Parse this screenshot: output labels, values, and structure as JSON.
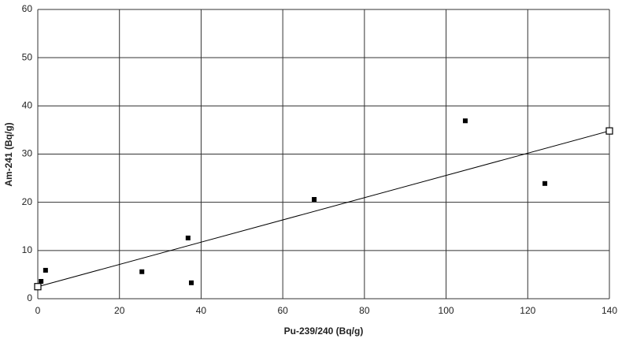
{
  "chart_data": {
    "type": "scatter",
    "xlabel": "Pu-239/240 (Bq/g)",
    "ylabel": "Am-241 (Bq/g)",
    "xlim": [
      0,
      140
    ],
    "ylim": [
      0,
      60
    ],
    "xticks": [
      0,
      20,
      40,
      60,
      80,
      100,
      120,
      140
    ],
    "yticks": [
      0,
      10,
      20,
      30,
      40,
      50,
      60
    ],
    "grid": true,
    "points": {
      "color": "#000000",
      "x": [
        0.8,
        1.9,
        25.5,
        36.8,
        37.6,
        67.7,
        104.7,
        124.2
      ],
      "y": [
        3.6,
        5.9,
        5.6,
        12.6,
        3.3,
        20.6,
        36.9,
        23.9
      ]
    },
    "trendline": {
      "color": "#000000",
      "x": [
        0,
        140
      ],
      "y": [
        2.5,
        34.8
      ]
    }
  }
}
